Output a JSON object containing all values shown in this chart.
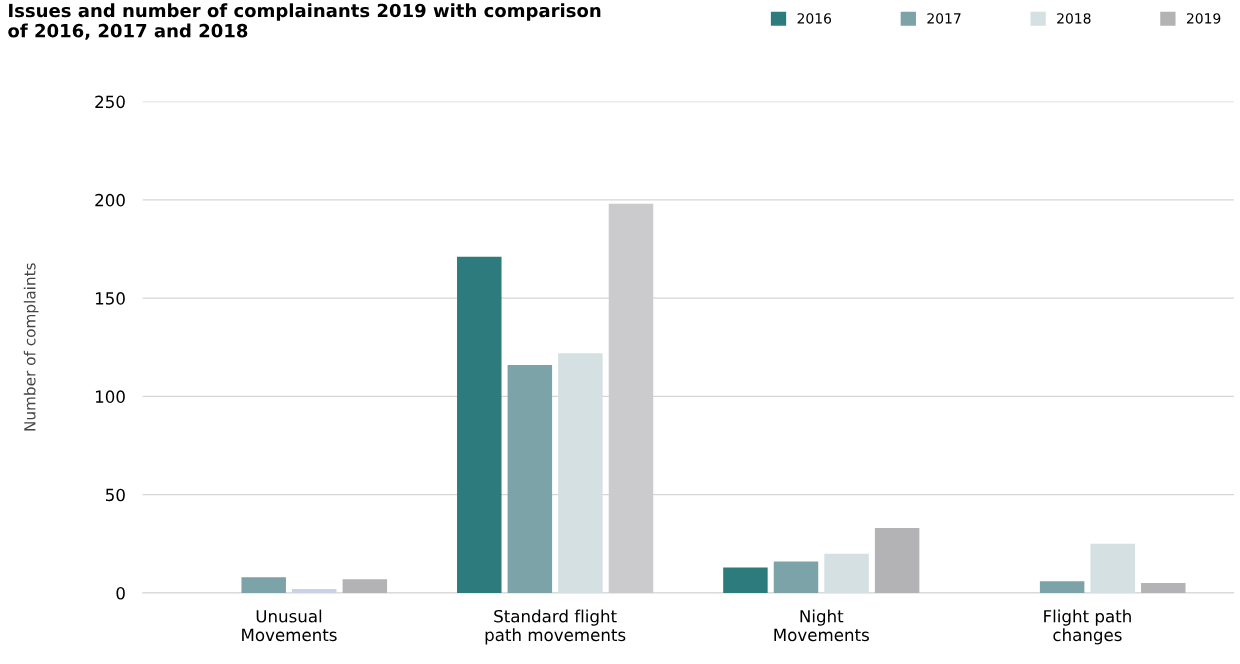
{
  "chart_data": {
    "type": "bar",
    "title": "Issues and number of complainants 2019 with comparison\nof 2016, 2017 and 2018",
    "ylabel": "Number of complaints",
    "categories": [
      "Unusual\nMovements",
      "Standard flight\npath movements",
      "Night\nMovements",
      "Flight path\nchanges"
    ],
    "series": [
      {
        "name": "2016",
        "color": "#2e7b7e",
        "values": [
          null,
          171,
          13,
          null
        ]
      },
      {
        "name": "2017",
        "color": "#7ba3a8",
        "values": [
          8,
          116,
          16,
          6
        ]
      },
      {
        "name": "2018",
        "color": "#d4e0e2",
        "colors": [
          "#c8d4e6",
          "#d4e0e2",
          "#d4e0e2",
          "#d4e0e2"
        ],
        "values": [
          2,
          122,
          20,
          25
        ]
      },
      {
        "name": "2019",
        "color": "#b3b3b5",
        "colors": [
          "#b3b3b5",
          "#cbcbcd",
          "#b3b3b5",
          "#b3b3b5"
        ],
        "values": [
          7,
          198,
          33,
          5
        ]
      }
    ],
    "ylim": [
      0,
      250
    ],
    "yticks": [
      0,
      50,
      100,
      150,
      200,
      250
    ],
    "grid": "y",
    "legend": "top right"
  }
}
